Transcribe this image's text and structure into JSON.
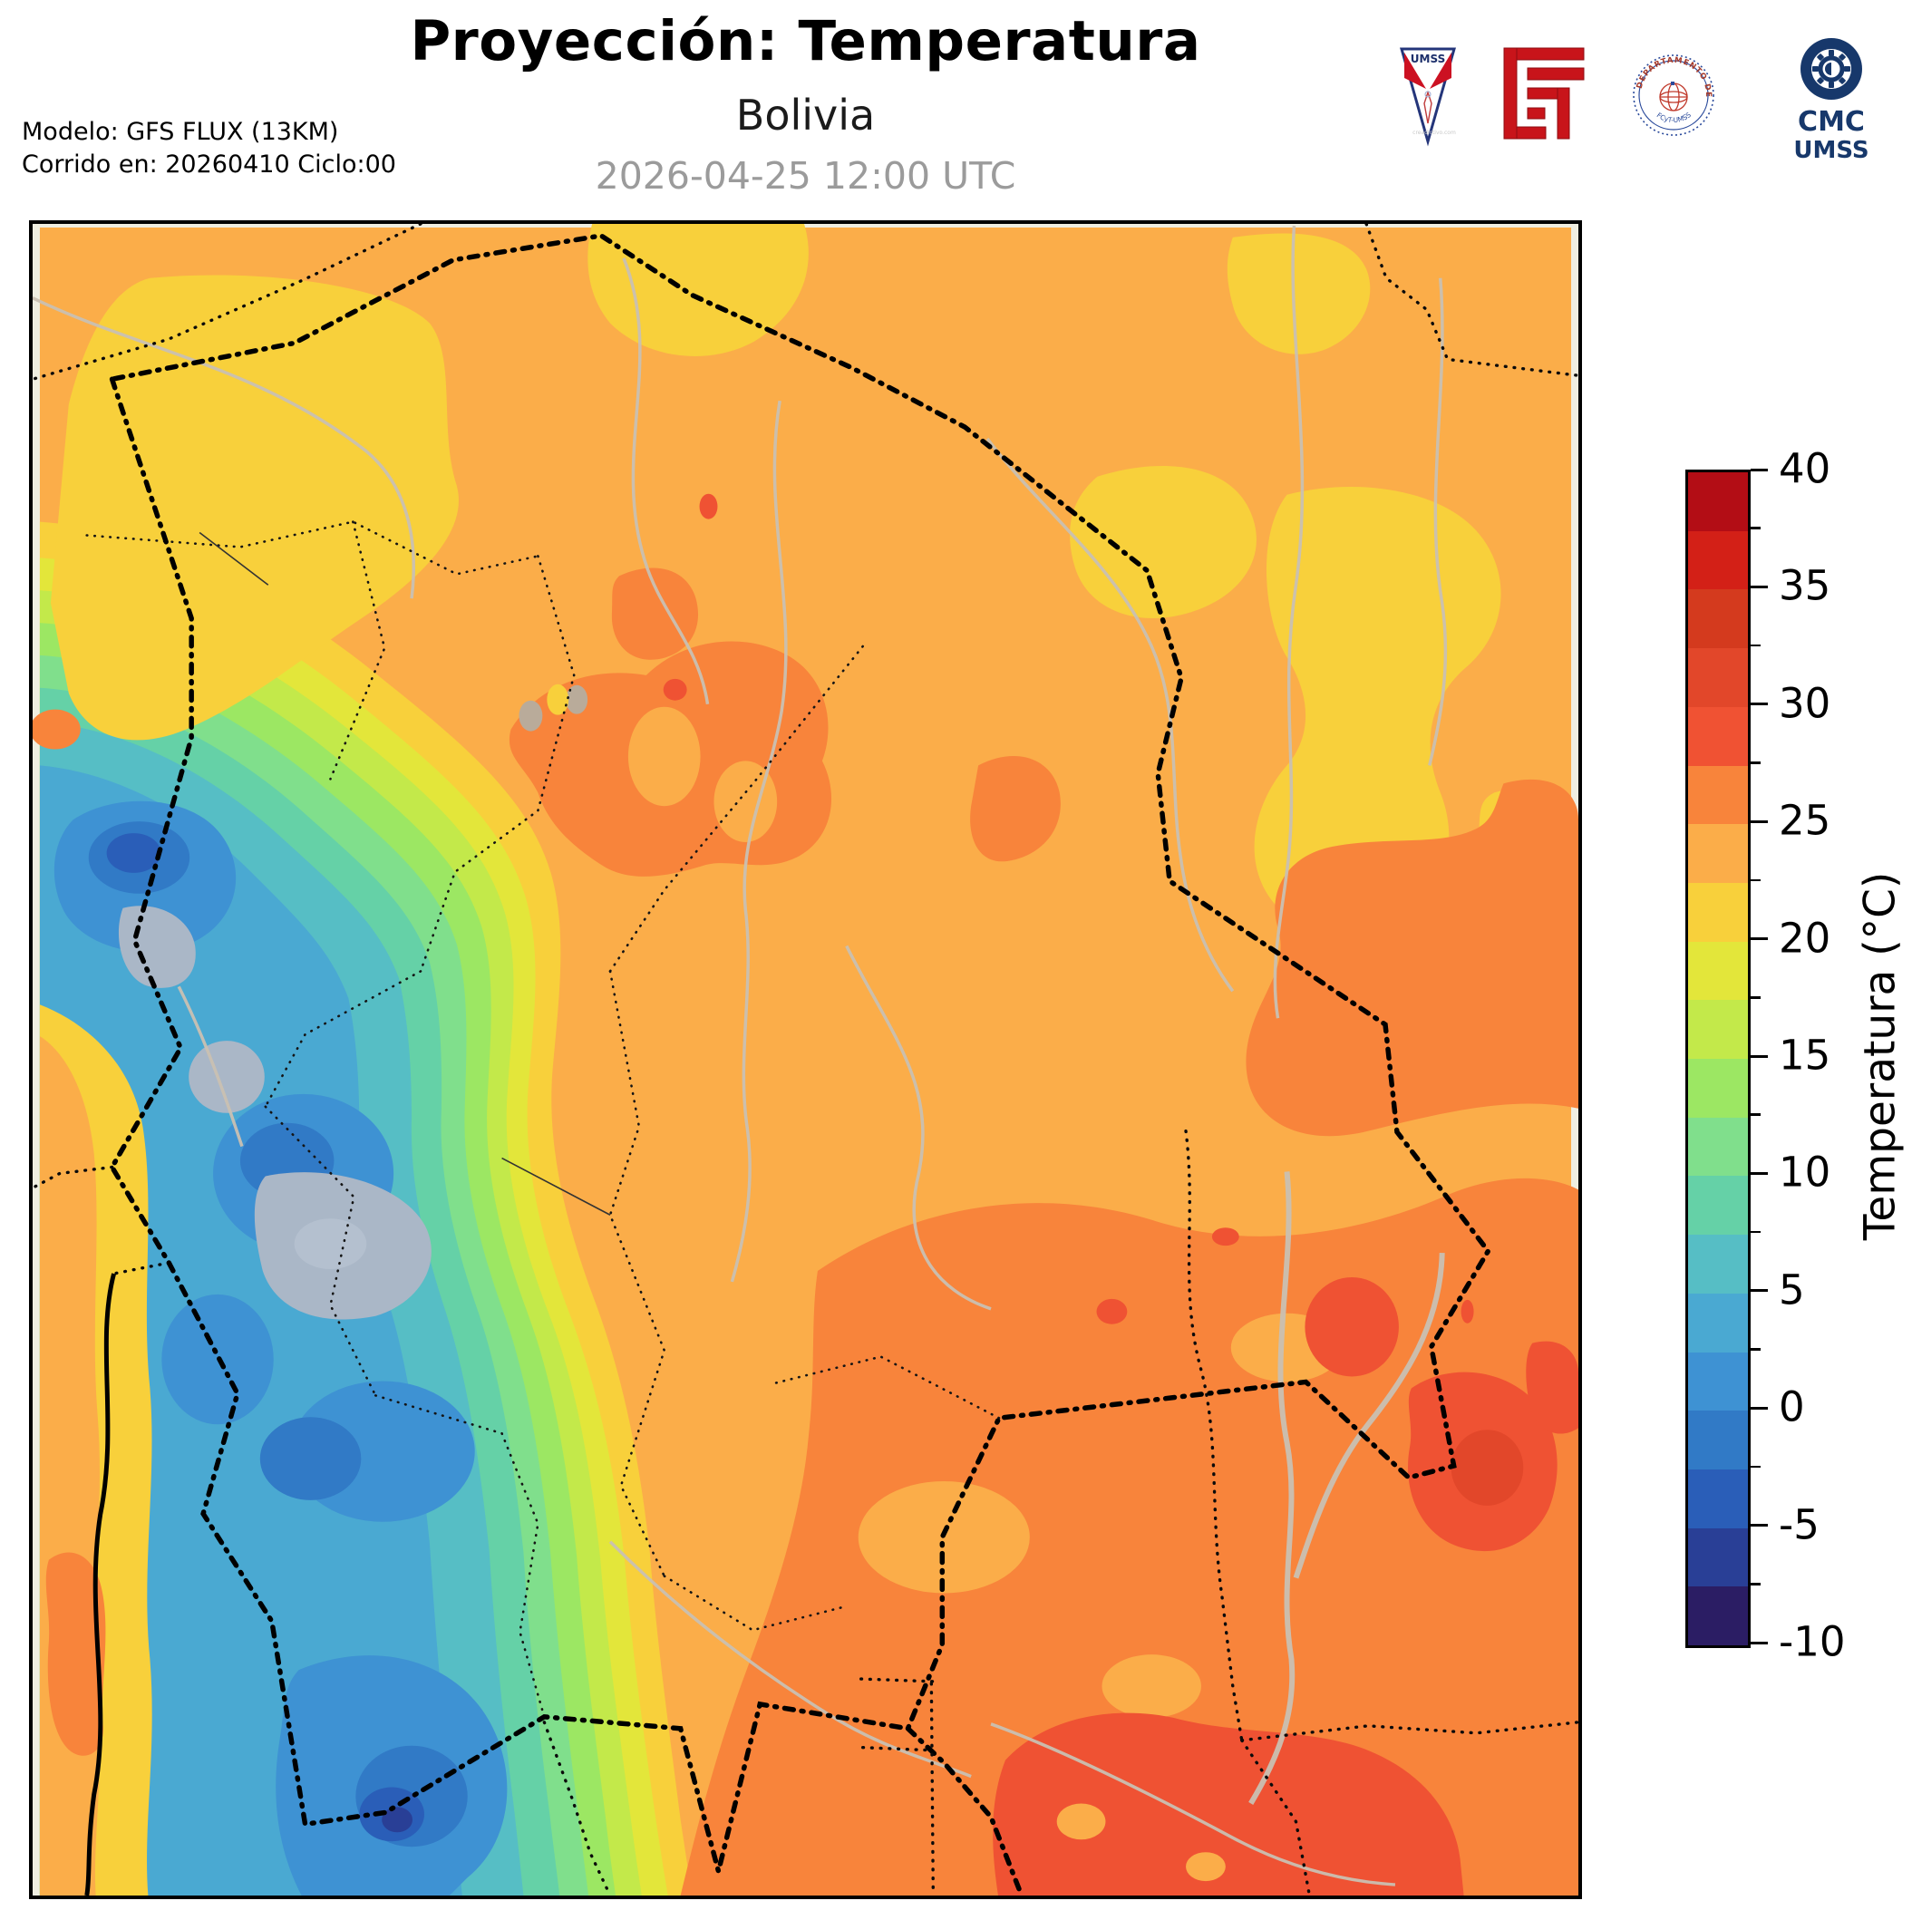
{
  "header": {
    "title": "Proyección: Temperatura",
    "subtitle": "Bolivia",
    "datetime": "2026-04-25 12:00 UTC",
    "model_line1": "Modelo: GFS FLUX (13KM)",
    "model_line2": "Corrido en: 20260410 Ciclo:00"
  },
  "logos": {
    "umss_label": "UMSS",
    "umss_watermark": "creadictivo.com",
    "seal_text_top": "DEPARTAMENTO DE FÍSICA",
    "seal_text_bottom": "FCyT-UMSS",
    "cmc_line1": "CMC",
    "cmc_line2": "UMSS"
  },
  "colorbar": {
    "label": "Temperatura (°C)",
    "unit": "°C",
    "min": -10,
    "max": 40,
    "band_step": 2.5,
    "major_ticks": [
      "40",
      "35",
      "30",
      "25",
      "20",
      "15",
      "10",
      "5",
      "0",
      "-5",
      "-10"
    ],
    "band_colors_top_to_bottom": [
      "#b30d15",
      "#d32017",
      "#d43a1e",
      "#e2472a",
      "#f05233",
      "#f8843b",
      "#fbad49",
      "#f8d03b",
      "#e3e63a",
      "#c3e94a",
      "#9ce763",
      "#80df8c",
      "#65d1a7",
      "#56bec5",
      "#4aa9d2",
      "#3e92d3",
      "#317ac6",
      "#2a5eb8",
      "#293f96",
      "#2b1d64"
    ]
  },
  "map": {
    "region": "Bolivia",
    "field": "temperatura en superficie",
    "dominant_lowland_color": "#fbad49",
    "warm_patch_color": "#f8843b",
    "hot_patch_color": "#ef5233",
    "cool_yellow_color": "#f8d03b",
    "andes_cold_core_color": "#3e92d3",
    "salt_flat_color": "#aab7c7",
    "river_color": "#c9c0b2",
    "frame_color": "#000000",
    "margin_color": "#efeee1"
  }
}
